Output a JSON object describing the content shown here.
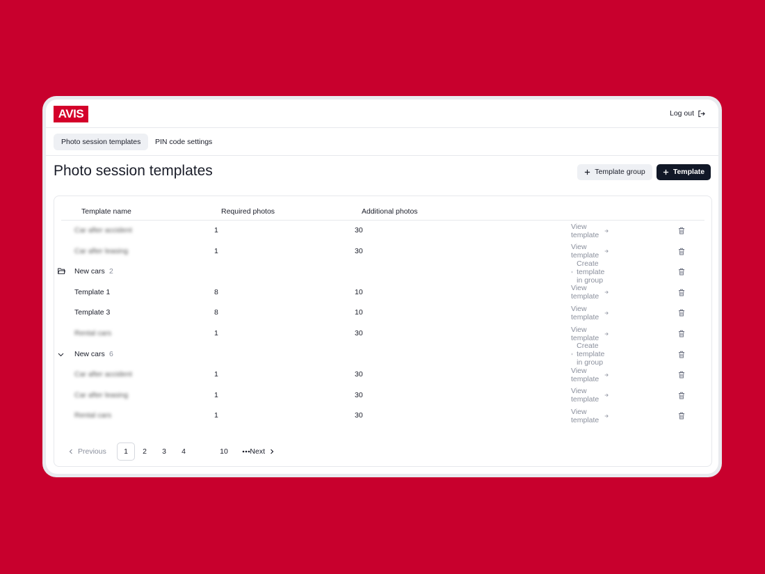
{
  "header": {
    "logo": "AVIS",
    "logout": "Log out"
  },
  "tabs": [
    "Photo session templates",
    "PIN code settings"
  ],
  "page": {
    "title": "Photo session templates",
    "buttons": [
      "Template group",
      "Template"
    ]
  },
  "table": {
    "columns": [
      "Template name",
      "Required photos",
      "Additional photos"
    ],
    "rows": [
      {
        "name": "Car after accident",
        "required": 1,
        "additional": 30,
        "action": "View template",
        "blurred": true
      },
      {
        "name": "Car after leasing",
        "required": 1,
        "additional": 30,
        "action": "View template",
        "blurred": true
      },
      {
        "group": "New cars",
        "count": 2,
        "action": "Create template in group",
        "icon": "folder"
      },
      {
        "name": "Template 1",
        "required": 8,
        "additional": 10,
        "action": "View template",
        "shaded": true
      },
      {
        "name": "Template 3",
        "required": 8,
        "additional": 10,
        "action": "View template",
        "shaded": true
      },
      {
        "name": "Rental cars",
        "required": 1,
        "additional": 30,
        "action": "View template",
        "blurred": true
      },
      {
        "group": "New cars",
        "count": 6,
        "action": "Create template in group",
        "icon": "chevron"
      },
      {
        "name": "Car after accident",
        "required": 1,
        "additional": 30,
        "action": "View template",
        "blurred": true
      },
      {
        "name": "Car after leasing",
        "required": 1,
        "additional": 30,
        "action": "View template",
        "blurred": true
      },
      {
        "name": "Rental cars",
        "required": 1,
        "additional": 30,
        "action": "View template",
        "blurred": true
      }
    ]
  },
  "pagination": {
    "previous": "Previous",
    "pages": [
      1,
      2,
      3,
      4,
      10
    ],
    "next": "Next"
  }
}
